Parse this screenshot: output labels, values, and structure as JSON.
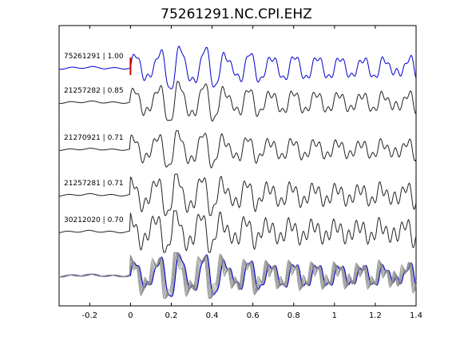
{
  "chart_data": {
    "type": "line",
    "title": "75261291.NC.CPI.EHZ",
    "xlabel": "",
    "ylabel": "",
    "xlim": [
      -0.35,
      1.4
    ],
    "xticks": [
      -0.2,
      0,
      0.2,
      0.4,
      0.6,
      0.8,
      1,
      1.2,
      1.4
    ],
    "xtick_labels": [
      "-0.2",
      "0",
      "0.2",
      "0.4",
      "0.6",
      "0.8",
      "1",
      "1.2",
      "1.4"
    ],
    "pick_marker": {
      "x": 0,
      "color": "#cc0000"
    },
    "overlay_panel": true,
    "series": [
      {
        "label": "75261291 | 1.00",
        "color": "#0000cc"
      },
      {
        "label": "21257282 | 0.85",
        "color": "#222222"
      },
      {
        "label": "21270921 | 0.71",
        "color": "#222222"
      },
      {
        "label": "21257281 | 0.71",
        "color": "#222222"
      },
      {
        "label": "30212020 | 0.70",
        "color": "#222222"
      }
    ],
    "overlay_colors": [
      "#0000cc",
      "#888888",
      "#888888",
      "#888888",
      "#888888"
    ]
  }
}
